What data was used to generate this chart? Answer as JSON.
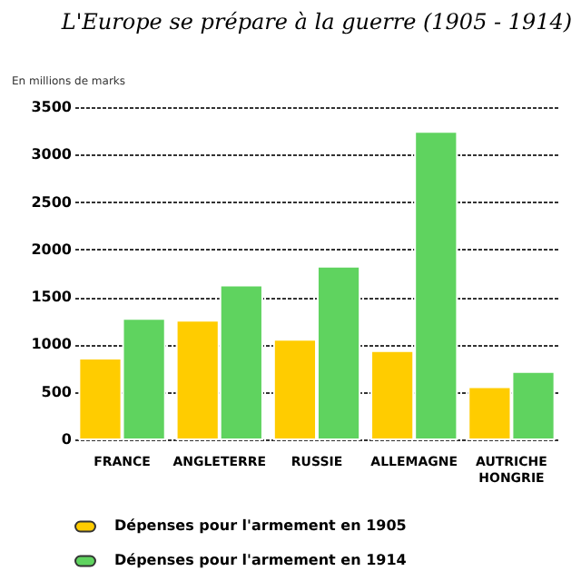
{
  "chart_data": {
    "type": "bar",
    "title": "L'Europe se prépare à la guerre (1905 - 1914)",
    "ylabel": "En millions de marks",
    "categories": [
      "FRANCE",
      "ANGLETERRE",
      "RUSSIE",
      "ALLEMAGNE",
      "AUTRICHE HONGRIE"
    ],
    "series": [
      {
        "name": "Dépenses pour l'armement en 1905",
        "color": "#ffcc00",
        "values": [
          850,
          1250,
          1050,
          930,
          550
        ]
      },
      {
        "name": "Dépenses pour l'armement en 1914",
        "color": "#5fd35f",
        "values": [
          1270,
          1620,
          1820,
          3240,
          710
        ]
      }
    ],
    "ylim": [
      0,
      3500
    ],
    "yticks": [
      0,
      500,
      1000,
      1500,
      2000,
      2500,
      3000,
      3500
    ],
    "grid": "y",
    "legend": "bottom"
  }
}
